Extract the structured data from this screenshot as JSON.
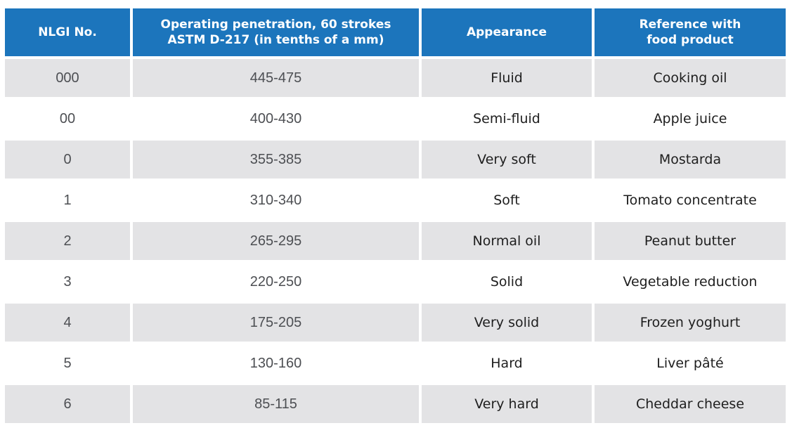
{
  "colors": {
    "header_bg": "#1c75bc",
    "header_text": "#ffffff",
    "row_alt_bg": "#e3e3e5",
    "row_bg": "#ffffff",
    "numeric_text": "#4d4f53",
    "body_text": "#1e1e1e"
  },
  "table": {
    "header": {
      "nlgi": {
        "line1": "NLGI No.",
        "line2": ""
      },
      "penetration": {
        "line1": "Operating penetration, 60 strokes",
        "line2": "ASTM D-217 (in tenths of a mm)"
      },
      "appearance": {
        "line1": "Appearance",
        "line2": ""
      },
      "reference": {
        "line1": "Reference with",
        "line2": "food product"
      }
    },
    "rows": [
      {
        "nlgi": "000",
        "penetration": "445-475",
        "appearance": "Fluid",
        "reference": "Cooking oil"
      },
      {
        "nlgi": "00",
        "penetration": "400-430",
        "appearance": "Semi-fluid",
        "reference": "Apple juice"
      },
      {
        "nlgi": "0",
        "penetration": "355-385",
        "appearance": "Very soft",
        "reference": "Mostarda"
      },
      {
        "nlgi": "1",
        "penetration": "310-340",
        "appearance": "Soft",
        "reference": "Tomato concentrate"
      },
      {
        "nlgi": "2",
        "penetration": "265-295",
        "appearance": "Normal oil",
        "reference": "Peanut butter"
      },
      {
        "nlgi": "3",
        "penetration": "220-250",
        "appearance": "Solid",
        "reference": "Vegetable reduction"
      },
      {
        "nlgi": "4",
        "penetration": "175-205",
        "appearance": "Very solid",
        "reference": "Frozen yoghurt"
      },
      {
        "nlgi": "5",
        "penetration": "130-160",
        "appearance": "Hard",
        "reference": "Liver pâté"
      },
      {
        "nlgi": "6",
        "penetration": "85-115",
        "appearance": "Very hard",
        "reference": "Cheddar cheese"
      }
    ]
  },
  "chart_data": {
    "type": "table",
    "columns": [
      "NLGI No.",
      "Operating penetration, 60 strokes ASTM D-217 (in tenths of a mm)",
      "Appearance",
      "Reference with food product"
    ],
    "rows": [
      [
        "000",
        "445-475",
        "Fluid",
        "Cooking oil"
      ],
      [
        "00",
        "400-430",
        "Semi-fluid",
        "Apple juice"
      ],
      [
        "0",
        "355-385",
        "Very soft",
        "Mostarda"
      ],
      [
        "1",
        "310-340",
        "Soft",
        "Tomato concentrate"
      ],
      [
        "2",
        "265-295",
        "Normal oil",
        "Peanut butter"
      ],
      [
        "3",
        "220-250",
        "Solid",
        "Vegetable reduction"
      ],
      [
        "4",
        "175-205",
        "Very solid",
        "Frozen yoghurt"
      ],
      [
        "5",
        "130-160",
        "Hard",
        "Liver pâté"
      ],
      [
        "6",
        "85-115",
        "Very hard",
        "Cheddar cheese"
      ]
    ]
  }
}
